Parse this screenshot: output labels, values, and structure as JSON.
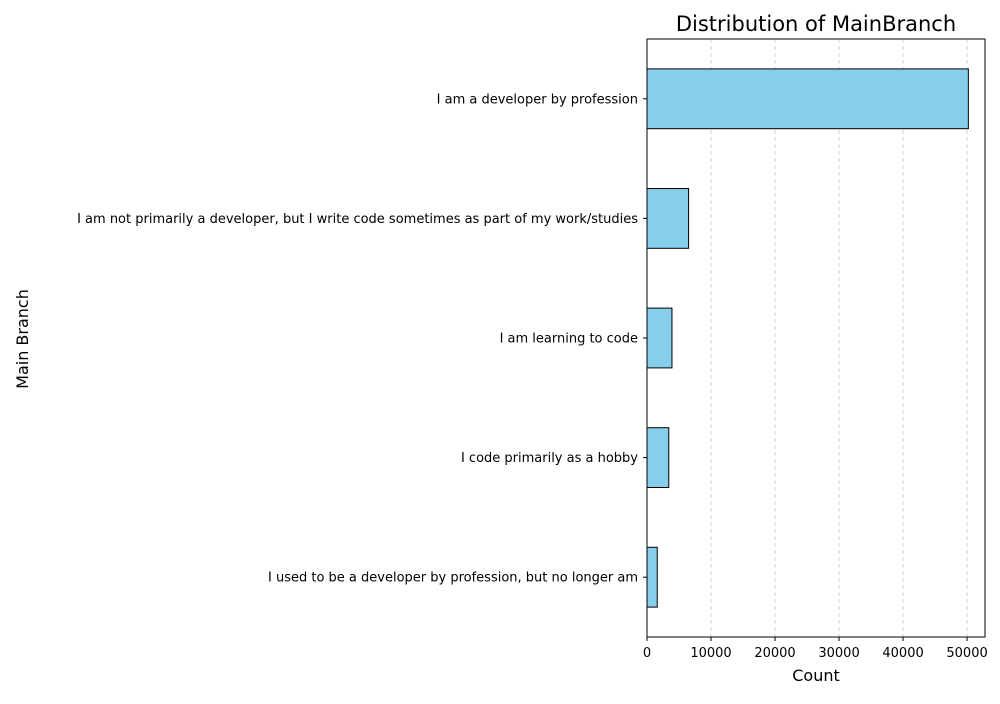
{
  "chart_data": {
    "type": "bar",
    "orientation": "horizontal",
    "title": "Distribution of MainBranch",
    "xlabel": "Count",
    "ylabel": "Main Branch",
    "categories": [
      "I am a developer by profession",
      "I am not primarily a developer, but I write code sometimes as part of my work/studies",
      "I am learning to code",
      "I code primarily as a hobby",
      "I used to be a developer by profession, but no longer am"
    ],
    "values": [
      50200,
      6500,
      3900,
      3400,
      1600
    ],
    "xlim": [
      0,
      52800
    ],
    "xticks": [
      0,
      10000,
      20000,
      30000,
      40000,
      50000
    ],
    "xtick_labels": [
      "0",
      "10000",
      "20000",
      "30000",
      "40000",
      "50000"
    ],
    "grid": {
      "x": true,
      "y": false,
      "style": "dashed"
    },
    "colors": {
      "bar_fill": "#87ceeb",
      "bar_edge": "#000000",
      "grid": "#c8c8c8"
    }
  }
}
